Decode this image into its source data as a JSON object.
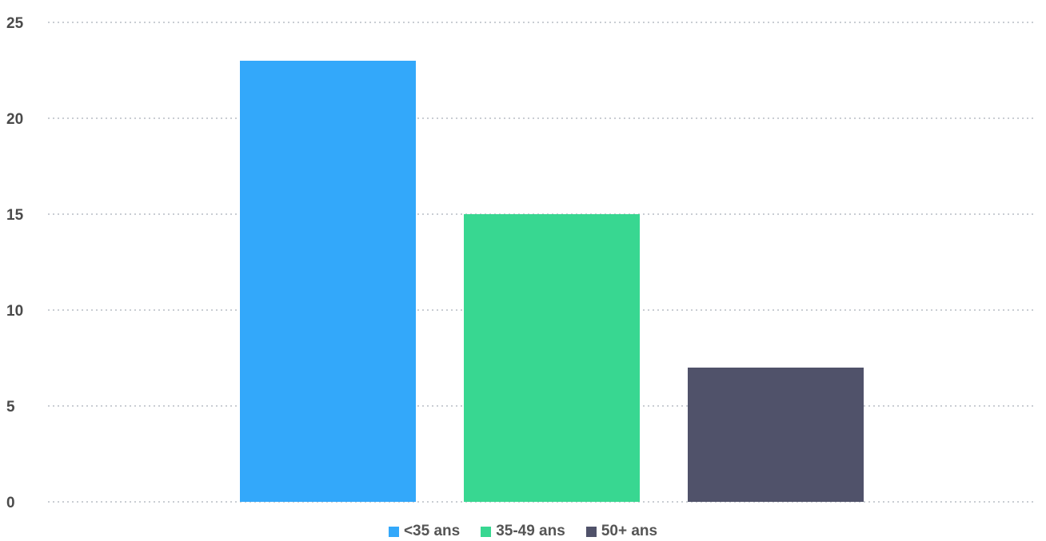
{
  "chart_data": {
    "type": "bar",
    "categories": [
      "<35 ans",
      "35-49 ans",
      "50+ ans"
    ],
    "values": [
      23,
      15,
      7
    ],
    "colors": [
      "#33a8fa",
      "#38d791",
      "#50526a"
    ],
    "ylim": [
      0,
      25
    ],
    "yticks": [
      0,
      5,
      10,
      15,
      20,
      25
    ],
    "grid": true,
    "grid_style": "dotted",
    "legend_position": "bottom-center",
    "title": "",
    "xlabel": "",
    "ylabel": ""
  },
  "legend": {
    "items": [
      {
        "label": "<35 ans",
        "color": "#33a8fa"
      },
      {
        "label": "35-49 ans",
        "color": "#38d791"
      },
      {
        "label": "50+ ans",
        "color": "#50526a"
      }
    ]
  }
}
